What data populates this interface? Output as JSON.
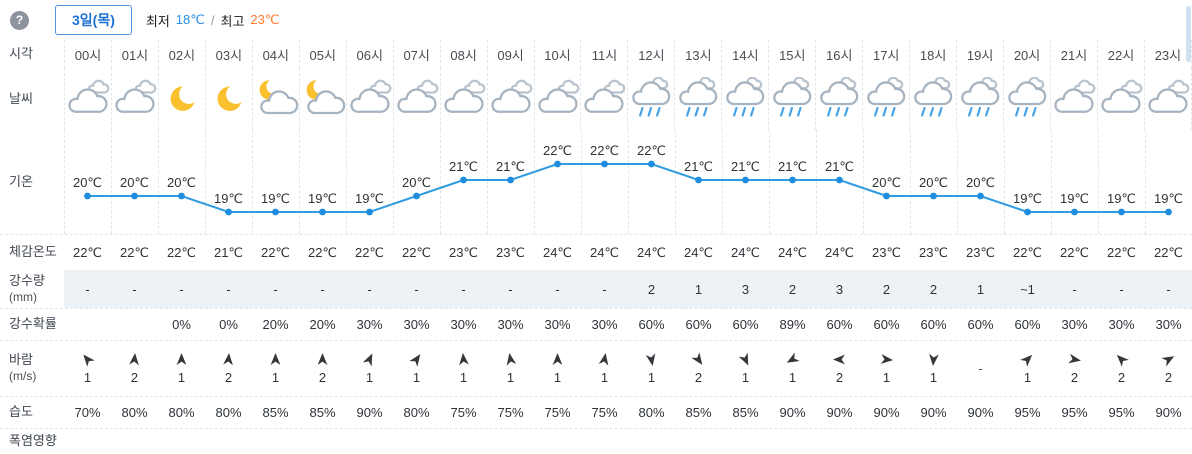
{
  "header": {
    "help_icon": "?",
    "date_label": "3일(목)",
    "min_label": "최저",
    "min_value": "18℃",
    "separator": "/",
    "max_label": "최고",
    "max_value": "23℃"
  },
  "row_labels": {
    "time": "시각",
    "weather": "날씨",
    "temperature": "기온",
    "feels_like": "체감온도",
    "precipitation_1": "강수량",
    "precipitation_2": "(mm)",
    "precip_probability": "강수확률",
    "wind_1": "바람",
    "wind_2": "(m/s)",
    "humidity": "습도",
    "heat_impact": "폭염영향"
  },
  "colors": {
    "line": "#2f9be0",
    "dot": "#1f8ddd",
    "min_temp": "#2a8fe8",
    "max_temp": "#ff7a2e",
    "date_accent": "#1b72d3",
    "precip_band": "#edf2f7",
    "rain_stroke": "#49a3e6",
    "moon": "#fbc02d",
    "cloud_stroke": "#a6b3c0"
  },
  "chart_data": {
    "type": "line",
    "title": "기온",
    "unit": "℃",
    "x": [
      "00시",
      "01시",
      "02시",
      "03시",
      "04시",
      "05시",
      "06시",
      "07시",
      "08시",
      "09시",
      "10시",
      "11시",
      "12시",
      "13시",
      "14시",
      "15시",
      "16시",
      "17시",
      "18시",
      "19시",
      "20시",
      "21시",
      "22시",
      "23시"
    ],
    "series": [
      {
        "name": "기온(℃)",
        "values": [
          20,
          20,
          20,
          19,
          19,
          19,
          19,
          20,
          21,
          21,
          22,
          22,
          22,
          21,
          21,
          21,
          21,
          20,
          20,
          20,
          19,
          19,
          19,
          19
        ]
      }
    ],
    "ylim": [
      18,
      23
    ],
    "grid": false,
    "legend": "none",
    "line_color": "#2f9be0"
  },
  "hours": [
    {
      "time": "00시",
      "icon": "cloudy",
      "temp": "20℃",
      "feels": "22℃",
      "precip": "-",
      "prob": "",
      "wind": {
        "dir": -40,
        "speed": "1"
      },
      "humidity": "70%"
    },
    {
      "time": "01시",
      "icon": "cloudy",
      "temp": "20℃",
      "feels": "22℃",
      "precip": "-",
      "prob": "",
      "wind": {
        "dir": 5,
        "speed": "2"
      },
      "humidity": "80%"
    },
    {
      "time": "02시",
      "icon": "moon",
      "temp": "20℃",
      "feels": "22℃",
      "precip": "-",
      "prob": "0%",
      "wind": {
        "dir": 0,
        "speed": "1"
      },
      "humidity": "80%"
    },
    {
      "time": "03시",
      "icon": "moon",
      "temp": "19℃",
      "feels": "21℃",
      "precip": "-",
      "prob": "0%",
      "wind": {
        "dir": 5,
        "speed": "2"
      },
      "humidity": "80%"
    },
    {
      "time": "04시",
      "icon": "moon-cloud",
      "temp": "19℃",
      "feels": "22℃",
      "precip": "-",
      "prob": "20%",
      "wind": {
        "dir": 0,
        "speed": "1"
      },
      "humidity": "85%"
    },
    {
      "time": "05시",
      "icon": "moon-cloud",
      "temp": "19℃",
      "feels": "22℃",
      "precip": "-",
      "prob": "20%",
      "wind": {
        "dir": 0,
        "speed": "2"
      },
      "humidity": "85%"
    },
    {
      "time": "06시",
      "icon": "cloudy",
      "temp": "19℃",
      "feels": "22℃",
      "precip": "-",
      "prob": "30%",
      "wind": {
        "dir": 25,
        "speed": "1"
      },
      "humidity": "90%"
    },
    {
      "time": "07시",
      "icon": "cloudy",
      "temp": "20℃",
      "feels": "22℃",
      "precip": "-",
      "prob": "30%",
      "wind": {
        "dir": 35,
        "speed": "1"
      },
      "humidity": "80%"
    },
    {
      "time": "08시",
      "icon": "cloudy",
      "temp": "21℃",
      "feels": "23℃",
      "precip": "-",
      "prob": "30%",
      "wind": {
        "dir": -5,
        "speed": "1"
      },
      "humidity": "75%"
    },
    {
      "time": "09시",
      "icon": "cloudy",
      "temp": "21℃",
      "feels": "23℃",
      "precip": "-",
      "prob": "30%",
      "wind": {
        "dir": -10,
        "speed": "1"
      },
      "humidity": "75%"
    },
    {
      "time": "10시",
      "icon": "cloudy",
      "temp": "22℃",
      "feels": "24℃",
      "precip": "-",
      "prob": "30%",
      "wind": {
        "dir": 0,
        "speed": "1"
      },
      "humidity": "75%"
    },
    {
      "time": "11시",
      "icon": "cloudy",
      "temp": "22℃",
      "feels": "24℃",
      "precip": "-",
      "prob": "30%",
      "wind": {
        "dir": 10,
        "speed": "1"
      },
      "humidity": "75%"
    },
    {
      "time": "12시",
      "icon": "rain",
      "temp": "22℃",
      "feels": "24℃",
      "precip": "2",
      "prob": "60%",
      "wind": {
        "dir": 170,
        "speed": "1"
      },
      "humidity": "80%"
    },
    {
      "time": "13시",
      "icon": "rain",
      "temp": "21℃",
      "feels": "24℃",
      "precip": "1",
      "prob": "60%",
      "wind": {
        "dir": 145,
        "speed": "2"
      },
      "humidity": "85%"
    },
    {
      "time": "14시",
      "icon": "rain",
      "temp": "21℃",
      "feels": "24℃",
      "precip": "3",
      "prob": "60%",
      "wind": {
        "dir": 155,
        "speed": "1"
      },
      "humidity": "85%"
    },
    {
      "time": "15시",
      "icon": "rain",
      "temp": "21℃",
      "feels": "24℃",
      "precip": "2",
      "prob": "89%",
      "wind": {
        "dir": 240,
        "speed": "1"
      },
      "humidity": "90%"
    },
    {
      "time": "16시",
      "icon": "rain",
      "temp": "21℃",
      "feels": "24℃",
      "precip": "3",
      "prob": "60%",
      "wind": {
        "dir": 270,
        "speed": "2"
      },
      "humidity": "90%"
    },
    {
      "time": "17시",
      "icon": "rain",
      "temp": "20℃",
      "feels": "23℃",
      "precip": "2",
      "prob": "60%",
      "wind": {
        "dir": 95,
        "speed": "1"
      },
      "humidity": "90%"
    },
    {
      "time": "18시",
      "icon": "rain",
      "temp": "20℃",
      "feels": "23℃",
      "precip": "2",
      "prob": "60%",
      "wind": {
        "dir": 185,
        "speed": "1"
      },
      "humidity": "90%"
    },
    {
      "time": "19시",
      "icon": "rain",
      "temp": "20℃",
      "feels": "23℃",
      "precip": "1",
      "prob": "60%",
      "wind": {
        "dir": null,
        "speed": "",
        "placeholder": "-"
      },
      "humidity": "90%"
    },
    {
      "time": "20시",
      "icon": "rain",
      "temp": "19℃",
      "feels": "22℃",
      "precip": "~1",
      "prob": "60%",
      "wind": {
        "dir": 45,
        "speed": "1"
      },
      "humidity": "95%"
    },
    {
      "time": "21시",
      "icon": "cloudy",
      "temp": "19℃",
      "feels": "22℃",
      "precip": "-",
      "prob": "30%",
      "wind": {
        "dir": 100,
        "speed": "2"
      },
      "humidity": "95%"
    },
    {
      "time": "22시",
      "icon": "cloudy",
      "temp": "19℃",
      "feels": "22℃",
      "precip": "-",
      "prob": "30%",
      "wind": {
        "dir": -45,
        "speed": "2"
      },
      "humidity": "95%"
    },
    {
      "time": "23시",
      "icon": "cloudy",
      "temp": "19℃",
      "feels": "22℃",
      "precip": "-",
      "prob": "30%",
      "wind": {
        "dir": 60,
        "speed": "2"
      },
      "humidity": "90%"
    }
  ]
}
